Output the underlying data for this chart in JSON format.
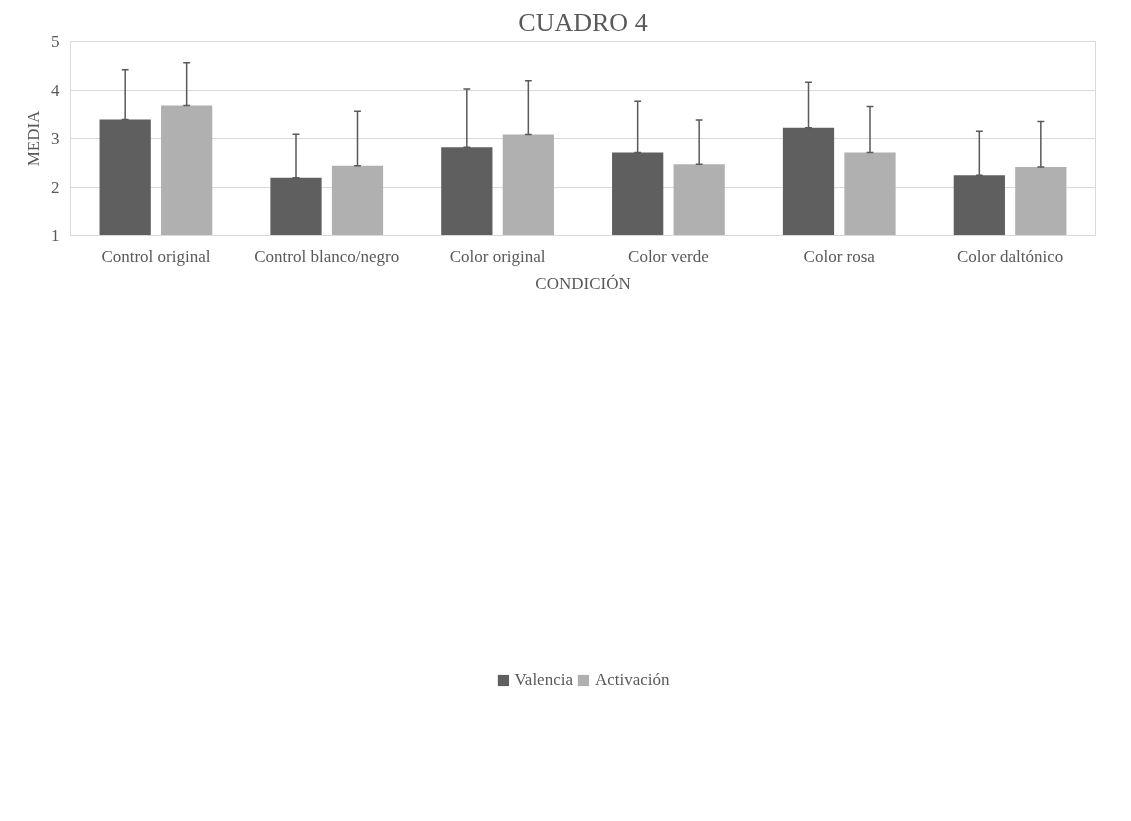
{
  "chart_data": {
    "type": "bar",
    "title": "CUADRO 4",
    "xlabel": "CONDICIÓN",
    "ylabel": "MEDIA",
    "categories": [
      "Control original",
      "Control blanco/negro",
      "Color original",
      "Color verde",
      "Color rosa",
      "Color daltónico"
    ],
    "series": [
      {
        "name": "Valencia",
        "color": "#5f5f5f",
        "values": [
          3.39,
          2.19,
          2.82,
          2.71,
          3.22,
          2.24
        ],
        "errors": [
          [
            3.39,
            4.42
          ],
          [
            2.19,
            3.09
          ],
          [
            2.82,
            4.02
          ],
          [
            2.71,
            3.77
          ],
          [
            3.22,
            4.16
          ],
          [
            2.24,
            3.15
          ]
        ]
      },
      {
        "name": "Activación",
        "color": "#b0b0b0",
        "values": [
          3.68,
          2.44,
          3.08,
          2.47,
          2.71,
          2.41
        ],
        "errors": [
          [
            3.68,
            4.56
          ],
          [
            2.44,
            3.56
          ],
          [
            3.08,
            4.19
          ],
          [
            2.47,
            3.38
          ],
          [
            2.71,
            3.66
          ],
          [
            2.41,
            3.35
          ]
        ]
      }
    ],
    "ylim": [
      1,
      5
    ],
    "yticks": [
      1,
      2,
      3,
      4,
      5
    ],
    "grid": "y",
    "legend": "bottom"
  }
}
